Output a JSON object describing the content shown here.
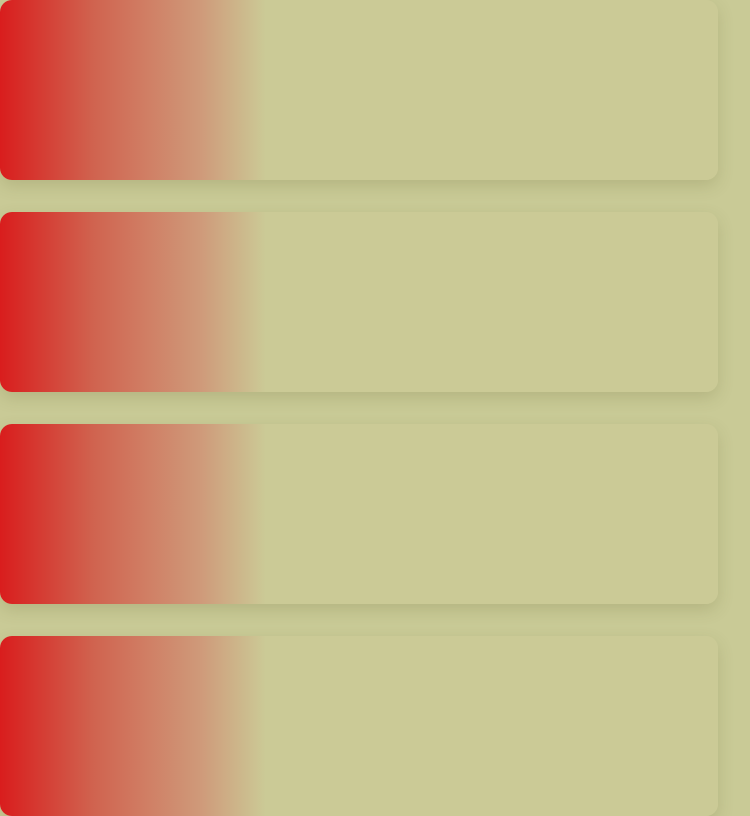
{
  "page": {
    "background_color": "#c9ca96"
  },
  "cards": [
    {
      "accent_color": "#d91d1d",
      "surface_color": "#cbca96"
    },
    {
      "accent_color": "#d91d1d",
      "surface_color": "#cbca96"
    },
    {
      "accent_color": "#d91d1d",
      "surface_color": "#cbca96"
    },
    {
      "accent_color": "#d91d1d",
      "surface_color": "#cbca96"
    }
  ]
}
